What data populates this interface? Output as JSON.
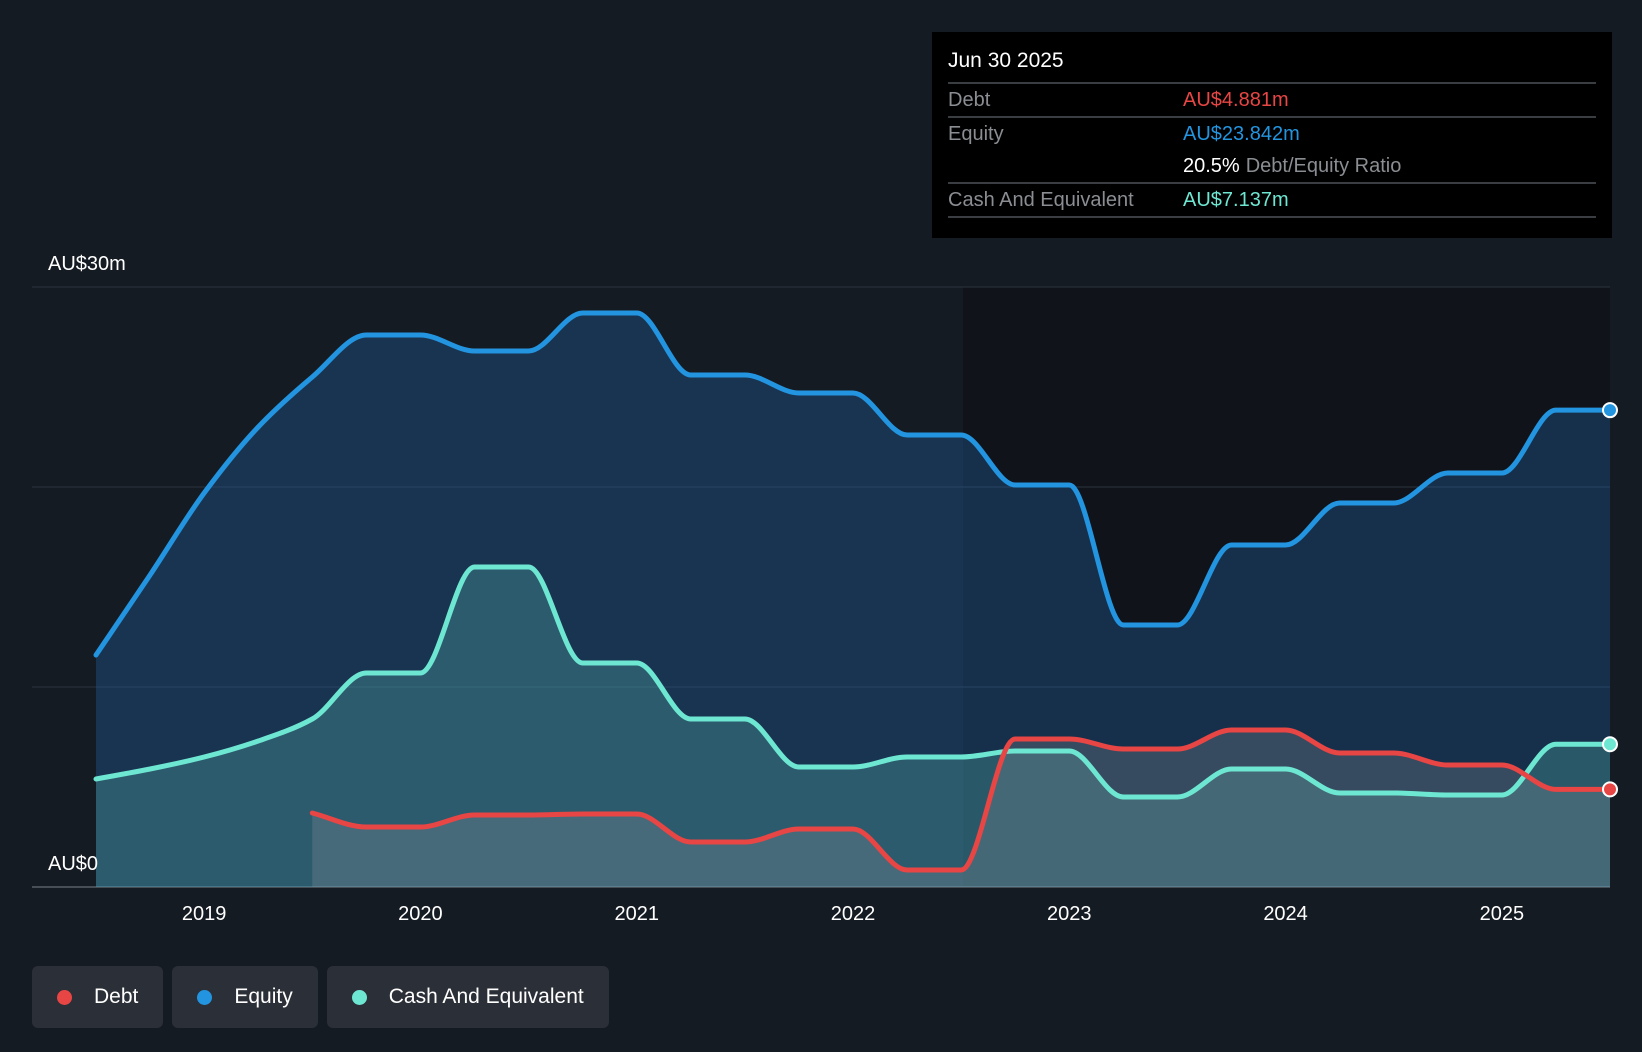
{
  "chart_data": {
    "type": "area",
    "title": "",
    "xlabel": "",
    "ylabel": "",
    "ylim": [
      0,
      30
    ],
    "xlim": [
      2018.5,
      2025.5
    ],
    "y_tick_labels": [
      "AU$0",
      "AU$30m"
    ],
    "x_ticks": [
      2019,
      2020,
      2021,
      2022,
      2023,
      2024,
      2025
    ],
    "x_tick_labels": [
      "2019",
      "2020",
      "2021",
      "2022",
      "2023",
      "2024",
      "2025"
    ],
    "grid": true,
    "legend_position": "bottom-left",
    "series": [
      {
        "name": "Equity",
        "color": "#2394df",
        "x": [
          2018.5,
          2018.75,
          2019,
          2019.25,
          2019.5,
          2019.75,
          2020,
          2020.25,
          2020.5,
          2020.75,
          2021,
          2021.25,
          2021.5,
          2021.75,
          2022,
          2022.25,
          2022.5,
          2022.75,
          2023,
          2023.25,
          2023.5,
          2023.75,
          2024,
          2024.25,
          2024.5,
          2024.75,
          2025,
          2025.25,
          2025.5
        ],
        "values": [
          11.6,
          15.6,
          19.7,
          23.0,
          25.5,
          27.6,
          27.6,
          26.8,
          26.8,
          28.7,
          28.7,
          25.6,
          25.6,
          24.7,
          24.7,
          22.6,
          22.6,
          20.1,
          20.1,
          13.1,
          13.1,
          17.1,
          17.1,
          19.2,
          19.2,
          20.7,
          20.7,
          23.842,
          23.842
        ]
      },
      {
        "name": "Cash And Equivalent",
        "color": "#6ee7d2",
        "x": [
          2018.5,
          2018.75,
          2019,
          2019.25,
          2019.5,
          2019.75,
          2020,
          2020.25,
          2020.5,
          2020.75,
          2021,
          2021.25,
          2021.5,
          2021.75,
          2022,
          2022.25,
          2022.5,
          2022.75,
          2023,
          2023.25,
          2023.5,
          2023.75,
          2024,
          2024.25,
          2024.5,
          2024.75,
          2025,
          2025.25,
          2025.5
        ],
        "values": [
          5.4,
          5.9,
          6.5,
          7.3,
          8.4,
          10.7,
          10.7,
          16.0,
          16.0,
          11.2,
          11.2,
          8.4,
          8.4,
          6.0,
          6.0,
          6.5,
          6.5,
          6.8,
          6.8,
          4.5,
          4.5,
          5.9,
          5.9,
          4.7,
          4.7,
          4.6,
          4.6,
          7.137,
          7.137
        ]
      },
      {
        "name": "Debt",
        "color": "#e84545",
        "x": [
          2019.5,
          2019.75,
          2020,
          2020.25,
          2020.5,
          2020.75,
          2021,
          2021.25,
          2021.5,
          2021.75,
          2022,
          2022.25,
          2022.5,
          2022.75,
          2023,
          2023.25,
          2023.5,
          2023.75,
          2024,
          2024.25,
          2024.5,
          2024.75,
          2025,
          2025.25,
          2025.5
        ],
        "values": [
          3.7,
          3.0,
          3.0,
          3.6,
          3.6,
          3.65,
          3.65,
          2.25,
          2.25,
          2.9,
          2.9,
          0.85,
          0.85,
          7.4,
          7.4,
          6.9,
          6.9,
          7.85,
          7.85,
          6.7,
          6.7,
          6.1,
          6.1,
          4.881,
          4.881
        ]
      }
    ]
  },
  "tooltip": {
    "date": "Jun 30 2025",
    "debt_label": "Debt",
    "debt_value": "AU$4.881m",
    "equity_label": "Equity",
    "equity_value": "AU$23.842m",
    "ratio_value": "20.5%",
    "ratio_label": "Debt/Equity Ratio",
    "cash_label": "Cash And Equivalent",
    "cash_value": "AU$7.137m"
  },
  "legend": [
    {
      "label": "Debt",
      "color": "#e84545"
    },
    {
      "label": "Equity",
      "color": "#2394df"
    },
    {
      "label": "Cash And Equivalent",
      "color": "#6ee7d2"
    }
  ]
}
